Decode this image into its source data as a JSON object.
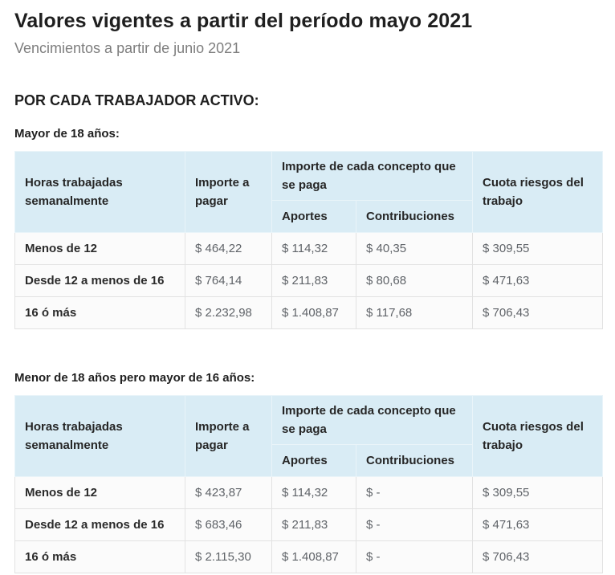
{
  "page": {
    "title": "Valores vigentes a partir del período mayo 2021",
    "subtitle": "Vencimientos a partir de junio 2021",
    "section_heading": "POR CADA TRABAJADOR ACTIVO:"
  },
  "colors": {
    "header_bg": "#d9ecf5",
    "body_row_bg": "#fbfbfb",
    "body_border": "#e2e2e2",
    "title_text": "#1f1f1f",
    "subtitle_text": "#7e7e7e",
    "value_text": "#5f6368"
  },
  "table_headers": {
    "hours": "Horas trabajadas semanalmente",
    "importe": "Importe a pagar",
    "concept_group": "Importe de cada concepto que se paga",
    "aportes": "Aportes",
    "contribuciones": "Contribuciones",
    "cuota": "Cuota riesgos del trabajo"
  },
  "tables": [
    {
      "caption": "Mayor de 18 años:",
      "rows": [
        {
          "hours": "Menos de 12",
          "importe": "$ 464,22",
          "aportes": "$ 114,32",
          "contribuciones": "$ 40,35",
          "cuota": "$ 309,55"
        },
        {
          "hours": "Desde 12 a menos de 16",
          "importe": "$ 764,14",
          "aportes": "$ 211,83",
          "contribuciones": "$ 80,68",
          "cuota": "$ 471,63"
        },
        {
          "hours": "16 ó más",
          "importe": "$ 2.232,98",
          "aportes": "$ 1.408,87",
          "contribuciones": "$ 117,68",
          "cuota": "$ 706,43"
        }
      ]
    },
    {
      "caption": "Menor de 18 años pero mayor de 16 años:",
      "rows": [
        {
          "hours": "Menos de 12",
          "importe": "$ 423,87",
          "aportes": "$ 114,32",
          "contribuciones": "$ -",
          "cuota": "$ 309,55"
        },
        {
          "hours": "Desde 12 a menos de 16",
          "importe": "$ 683,46",
          "aportes": "$ 211,83",
          "contribuciones": "$ -",
          "cuota": "$ 471,63"
        },
        {
          "hours": "16 ó más",
          "importe": "$ 2.115,30",
          "aportes": "$ 1.408,87",
          "contribuciones": "$ -",
          "cuota": "$ 706,43"
        }
      ]
    }
  ]
}
